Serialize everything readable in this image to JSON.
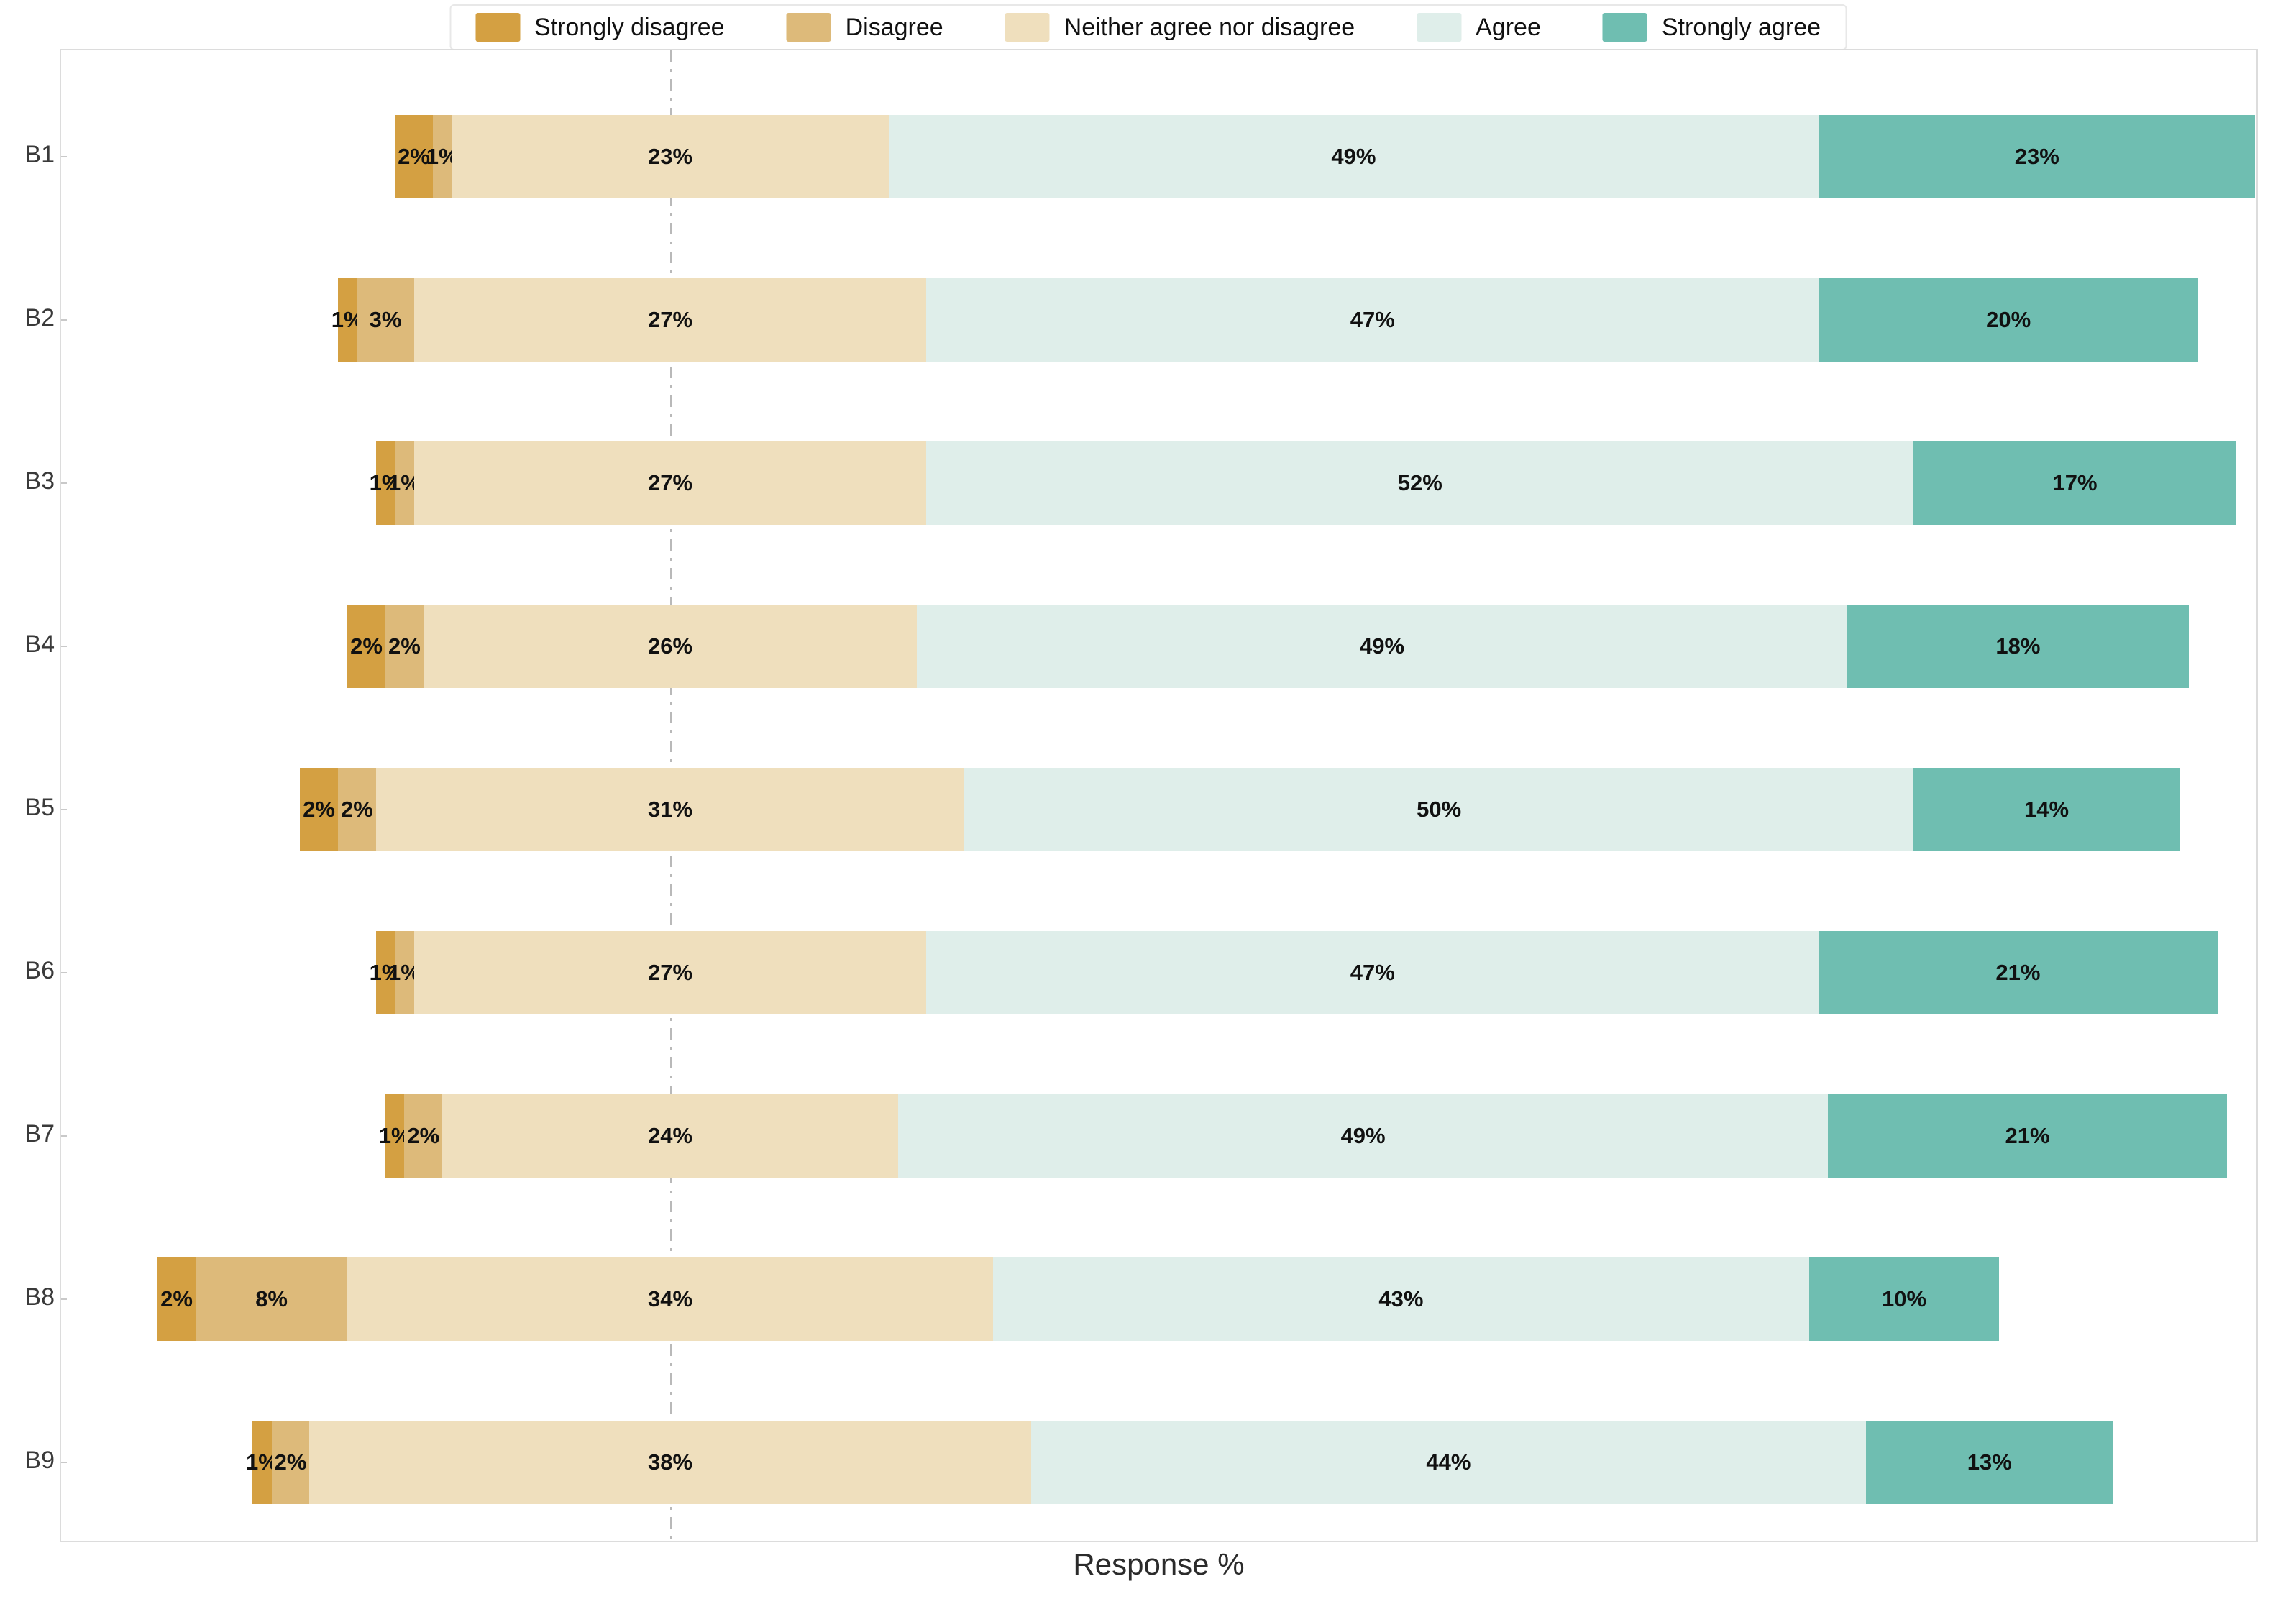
{
  "chart_data": {
    "type": "bar",
    "variant": "diverging-stacked-likert",
    "orientation": "horizontal",
    "title": "",
    "xlabel": "Response %",
    "ylabel": "",
    "value_suffix": "%",
    "legend_position": "top-center",
    "grid": false,
    "center_reference_line": true,
    "categories": [
      "B1",
      "B2",
      "B3",
      "B4",
      "B5",
      "B6",
      "B7",
      "B8",
      "B9"
    ],
    "series": [
      {
        "name": "Strongly disagree",
        "color": "#D4A042",
        "values": [
          2,
          1,
          1,
          2,
          2,
          1,
          1,
          2,
          1
        ]
      },
      {
        "name": "Disagree",
        "color": "#DDBA7A",
        "values": [
          1,
          3,
          1,
          2,
          2,
          1,
          2,
          8,
          2
        ]
      },
      {
        "name": "Neither agree nor disagree",
        "color": "#EFDFBD",
        "values": [
          23,
          27,
          27,
          26,
          31,
          27,
          24,
          34,
          38
        ]
      },
      {
        "name": "Agree",
        "color": "#DFEEEA",
        "values": [
          49,
          47,
          52,
          49,
          50,
          47,
          49,
          43,
          44
        ]
      },
      {
        "name": "Strongly agree",
        "color": "#6FBEB1",
        "values": [
          23,
          20,
          17,
          18,
          14,
          21,
          21,
          10,
          13
        ]
      }
    ],
    "bar_value_labels": [
      [
        "2%",
        "1%",
        "23%",
        "49%",
        "23%"
      ],
      [
        "1%",
        "3%",
        "27%",
        "47%",
        "20%"
      ],
      [
        "1%",
        "1%",
        "27%",
        "52%",
        "17%"
      ],
      [
        "2%",
        "2%",
        "26%",
        "49%",
        "18%"
      ],
      [
        "2%",
        "2%",
        "31%",
        "50%",
        "14%"
      ],
      [
        "1%",
        "1%",
        "27%",
        "47%",
        "21%"
      ],
      [
        "1%",
        "2%",
        "24%",
        "49%",
        "21%"
      ],
      [
        "2%",
        "8%",
        "34%",
        "43%",
        "10%"
      ],
      [
        "1%",
        "2%",
        "38%",
        "44%",
        "13%"
      ]
    ],
    "reference_line_color": "#b9b9b9",
    "plot_border_color": "#dcdcdc"
  }
}
